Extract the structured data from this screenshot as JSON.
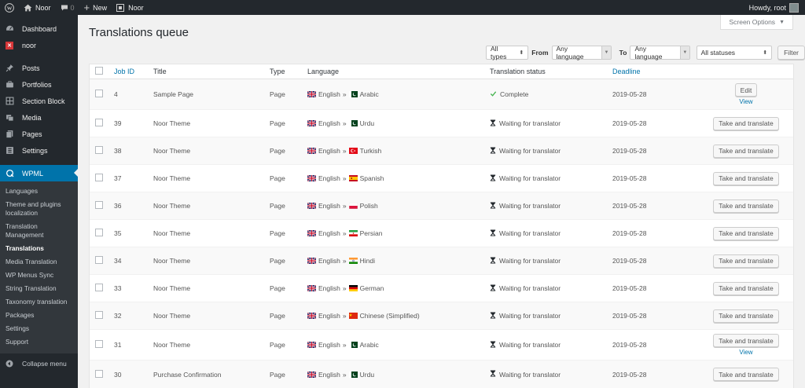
{
  "adminbar": {
    "site_name": "Noor",
    "comments_count": "0",
    "new_label": "New",
    "plugin_label": "Noor",
    "howdy": "Howdy, root"
  },
  "sidebar": {
    "top_items": [
      {
        "label": "Dashboard",
        "icon": "dashboard-icon"
      },
      {
        "label": "noor",
        "icon": "noor-icon"
      }
    ],
    "items": [
      {
        "label": "Posts",
        "icon": "pin-icon"
      },
      {
        "label": "Portfolios",
        "icon": "portfolio-icon"
      },
      {
        "label": "Section Block",
        "icon": "grid-icon"
      },
      {
        "label": "Media",
        "icon": "media-icon"
      },
      {
        "label": "Pages",
        "icon": "pages-icon"
      },
      {
        "label": "Settings",
        "icon": "settings-icon"
      }
    ],
    "wpml": {
      "label": "WPML",
      "icon": "wpml-icon"
    },
    "submenu": [
      "Languages",
      "Theme and plugins localization",
      "Translation Management",
      "Translations",
      "Media Translation",
      "WP Menus Sync",
      "String Translation",
      "Taxonomy translation",
      "Packages",
      "Settings",
      "Support"
    ],
    "collapse": "Collapse menu"
  },
  "screen_options": "Screen Options",
  "page_title": "Translations queue",
  "filters": {
    "types": "All types",
    "from_label": "From",
    "from_value": "Any language",
    "to_label": "To",
    "to_value": "Any language",
    "statuses": "All statuses",
    "filter_button": "Filter"
  },
  "table": {
    "headers": {
      "job_id": "Job ID",
      "title": "Title",
      "type": "Type",
      "language": "Language",
      "status": "Translation status",
      "deadline": "Deadline"
    },
    "rows": [
      {
        "id": "4",
        "title": "Sample Page",
        "type": "Page",
        "source": "English",
        "sep": "»",
        "target": "Arabic",
        "target_flag": "pk",
        "status": "Complete",
        "status_icon": "check-icon",
        "deadline": "2019-05-28",
        "action": "Edit",
        "view": "View"
      },
      {
        "id": "39",
        "title": "Noor Theme",
        "type": "Page",
        "source": "English",
        "sep": "»",
        "target": "Urdu",
        "target_flag": "pk",
        "status": "Waiting for translator",
        "status_icon": "hourglass-icon",
        "deadline": "2019-05-28",
        "action": "Take and translate",
        "view": ""
      },
      {
        "id": "38",
        "title": "Noor Theme",
        "type": "Page",
        "source": "English",
        "sep": "»",
        "target": "Turkish",
        "target_flag": "tr",
        "status": "Waiting for translator",
        "status_icon": "hourglass-icon",
        "deadline": "2019-05-28",
        "action": "Take and translate",
        "view": ""
      },
      {
        "id": "37",
        "title": "Noor Theme",
        "type": "Page",
        "source": "English",
        "sep": "»",
        "target": "Spanish",
        "target_flag": "es",
        "status": "Waiting for translator",
        "status_icon": "hourglass-icon",
        "deadline": "2019-05-28",
        "action": "Take and translate",
        "view": ""
      },
      {
        "id": "36",
        "title": "Noor Theme",
        "type": "Page",
        "source": "English",
        "sep": "»",
        "target": "Polish",
        "target_flag": "pl",
        "status": "Waiting for translator",
        "status_icon": "hourglass-icon",
        "deadline": "2019-05-28",
        "action": "Take and translate",
        "view": ""
      },
      {
        "id": "35",
        "title": "Noor Theme",
        "type": "Page",
        "source": "English",
        "sep": "»",
        "target": "Persian",
        "target_flag": "ir",
        "status": "Waiting for translator",
        "status_icon": "hourglass-icon",
        "deadline": "2019-05-28",
        "action": "Take and translate",
        "view": ""
      },
      {
        "id": "34",
        "title": "Noor Theme",
        "type": "Page",
        "source": "English",
        "sep": "»",
        "target": "Hindi",
        "target_flag": "in",
        "status": "Waiting for translator",
        "status_icon": "hourglass-icon",
        "deadline": "2019-05-28",
        "action": "Take and translate",
        "view": ""
      },
      {
        "id": "33",
        "title": "Noor Theme",
        "type": "Page",
        "source": "English",
        "sep": "»",
        "target": "German",
        "target_flag": "de",
        "status": "Waiting for translator",
        "status_icon": "hourglass-icon",
        "deadline": "2019-05-28",
        "action": "Take and translate",
        "view": ""
      },
      {
        "id": "32",
        "title": "Noor Theme",
        "type": "Page",
        "source": "English",
        "sep": "»",
        "target": "Chinese (Simplified)",
        "target_flag": "cn",
        "status": "Waiting for translator",
        "status_icon": "hourglass-icon",
        "deadline": "2019-05-28",
        "action": "Take and translate",
        "view": ""
      },
      {
        "id": "31",
        "title": "Noor Theme",
        "type": "Page",
        "source": "English",
        "sep": "»",
        "target": "Arabic",
        "target_flag": "pk",
        "status": "Waiting for translator",
        "status_icon": "hourglass-icon",
        "deadline": "2019-05-28",
        "action": "Take and translate",
        "view": "View"
      },
      {
        "id": "30",
        "title": "Purchase Confirmation",
        "type": "Page",
        "source": "English",
        "sep": "»",
        "target": "Urdu",
        "target_flag": "pk",
        "status": "Waiting for translator",
        "status_icon": "hourglass-icon",
        "deadline": "2019-05-28",
        "action": "Take and translate",
        "view": ""
      }
    ]
  },
  "colors": {
    "admin_dark": "#23282d",
    "accent": "#0073aa",
    "complete": "#46b450"
  }
}
